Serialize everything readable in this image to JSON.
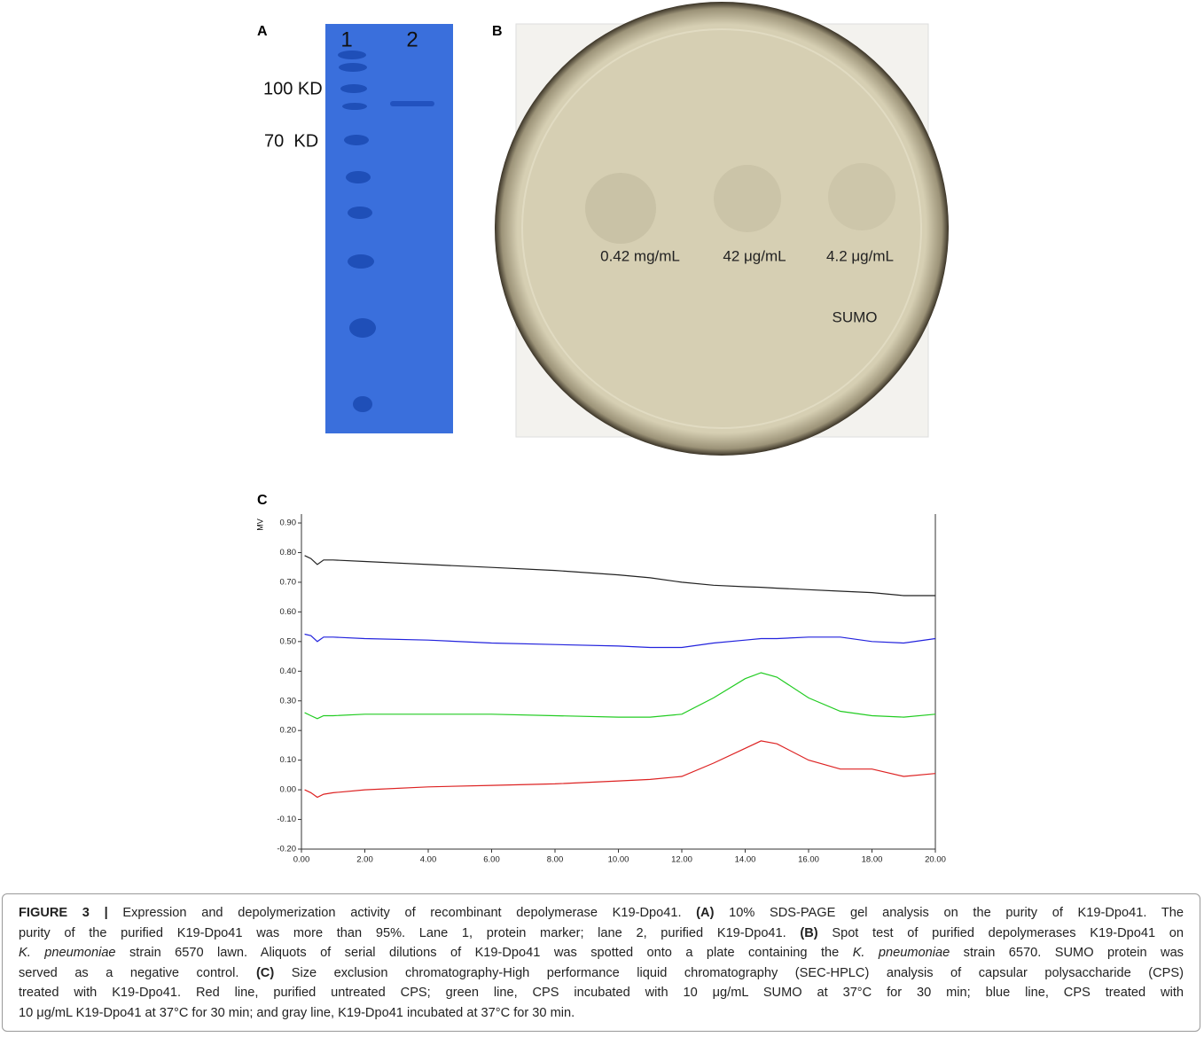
{
  "panel_a": {
    "label": "A",
    "lanes": [
      "1",
      "2"
    ],
    "markers": [
      "100 KD",
      "70  KD"
    ]
  },
  "panel_b": {
    "label": "B",
    "spots": [
      "0.42 mg/mL",
      "42 μg/mL",
      "4.2 μg/mL"
    ],
    "control": "SUMO"
  },
  "chart_data": {
    "type": "line",
    "panel_label": "C",
    "ylabel": "MV",
    "x": [
      0.1,
      0.3,
      0.5,
      0.7,
      1,
      2,
      4,
      6,
      8,
      10,
      11,
      12,
      13,
      14,
      14.5,
      15,
      16,
      17,
      18,
      19,
      20
    ],
    "series": [
      {
        "color": "#222222",
        "values": [
          0.79,
          0.78,
          0.76,
          0.775,
          0.775,
          0.77,
          0.76,
          0.75,
          0.74,
          0.725,
          0.715,
          0.7,
          0.69,
          0.685,
          0.683,
          0.68,
          0.675,
          0.67,
          0.665,
          0.655,
          0.655
        ]
      },
      {
        "color": "#2222dd",
        "values": [
          0.525,
          0.52,
          0.5,
          0.515,
          0.515,
          0.51,
          0.505,
          0.495,
          0.49,
          0.485,
          0.48,
          0.48,
          0.495,
          0.505,
          0.51,
          0.51,
          0.515,
          0.515,
          0.5,
          0.495,
          0.51
        ]
      },
      {
        "color": "#22cc22",
        "values": [
          0.26,
          0.25,
          0.24,
          0.25,
          0.25,
          0.255,
          0.255,
          0.255,
          0.25,
          0.245,
          0.245,
          0.255,
          0.31,
          0.375,
          0.395,
          0.38,
          0.31,
          0.265,
          0.25,
          0.245,
          0.255
        ]
      },
      {
        "color": "#dd2222",
        "values": [
          0.0,
          -0.01,
          -0.025,
          -0.015,
          -0.01,
          0.0,
          0.01,
          0.015,
          0.02,
          0.03,
          0.035,
          0.045,
          0.09,
          0.14,
          0.165,
          0.155,
          0.1,
          0.07,
          0.07,
          0.045,
          0.055
        ]
      }
    ],
    "xlim": [
      0,
      20
    ],
    "ylim": [
      -0.2,
      0.93
    ],
    "xticks": [
      {
        "value": 0,
        "label": "0.00"
      },
      {
        "value": 2,
        "label": "2.00"
      },
      {
        "value": 4,
        "label": "4.00"
      },
      {
        "value": 6,
        "label": "6.00"
      },
      {
        "value": 8,
        "label": "8.00"
      },
      {
        "value": 10,
        "label": "10.00"
      },
      {
        "value": 12,
        "label": "12.00"
      },
      {
        "value": 14,
        "label": "14.00"
      },
      {
        "value": 16,
        "label": "16.00"
      },
      {
        "value": 18,
        "label": "18.00"
      },
      {
        "value": 20,
        "label": "20.00"
      }
    ],
    "yticks": [
      {
        "value": -0.2,
        "label": "-0.20"
      },
      {
        "value": -0.1,
        "label": "-0.10"
      },
      {
        "value": 0,
        "label": "0.00"
      },
      {
        "value": 0.1,
        "label": "0.10"
      },
      {
        "value": 0.2,
        "label": "0.20"
      },
      {
        "value": 0.3,
        "label": "0.30"
      },
      {
        "value": 0.4,
        "label": "0.40"
      },
      {
        "value": 0.5,
        "label": "0.50"
      },
      {
        "value": 0.6,
        "label": "0.60"
      },
      {
        "value": 0.7,
        "label": "0.70"
      },
      {
        "value": 0.8,
        "label": "0.80"
      },
      {
        "value": 0.9,
        "label": "0.90"
      }
    ]
  },
  "caption": {
    "lines": [
      [
        {
          "text": "FIGURE 3 |",
          "bold": true
        },
        {
          "text": " Expression and depolymerization activity of recombinant depolymerase K19-Dpo41. "
        },
        {
          "text": "(A)",
          "bold": true
        },
        {
          "text": " 10% SDS-PAGE gel analysis on the purity of K19-Dpo41. The"
        }
      ],
      [
        {
          "text": "purity of the purified K19-Dpo41 was more than 95%. Lane 1, protein marker; lane 2, purified K19-Dpo41. "
        },
        {
          "text": "(B)",
          "bold": true
        },
        {
          "text": " Spot test of purified depolymerases K19-Dpo41 on"
        }
      ],
      [
        {
          "text": "K. pneumoniae",
          "italic": true
        },
        {
          "text": " strain 6570 lawn. Aliquots of serial dilutions of K19-Dpo41 was spotted onto a plate containing the "
        },
        {
          "text": "K. pneumoniae",
          "italic": true
        },
        {
          "text": " strain 6570. SUMO protein was"
        }
      ],
      [
        {
          "text": "served as a negative control. "
        },
        {
          "text": "(C)",
          "bold": true
        },
        {
          "text": " Size exclusion chromatography-High performance liquid chromatography (SEC-HPLC) analysis of capsular polysaccharide (CPS)"
        }
      ],
      [
        {
          "text": "treated with K19-Dpo41. Red line, purified untreated CPS; green line, CPS incubated with 10 μg/mL SUMO at 37°C for 30 min; blue line, CPS treated with"
        }
      ],
      [
        {
          "text": "10 μg/mL K19-Dpo41 at 37°C for 30 min; and gray line, K19-Dpo41 incubated at 37°C for 30 min."
        }
      ]
    ]
  }
}
